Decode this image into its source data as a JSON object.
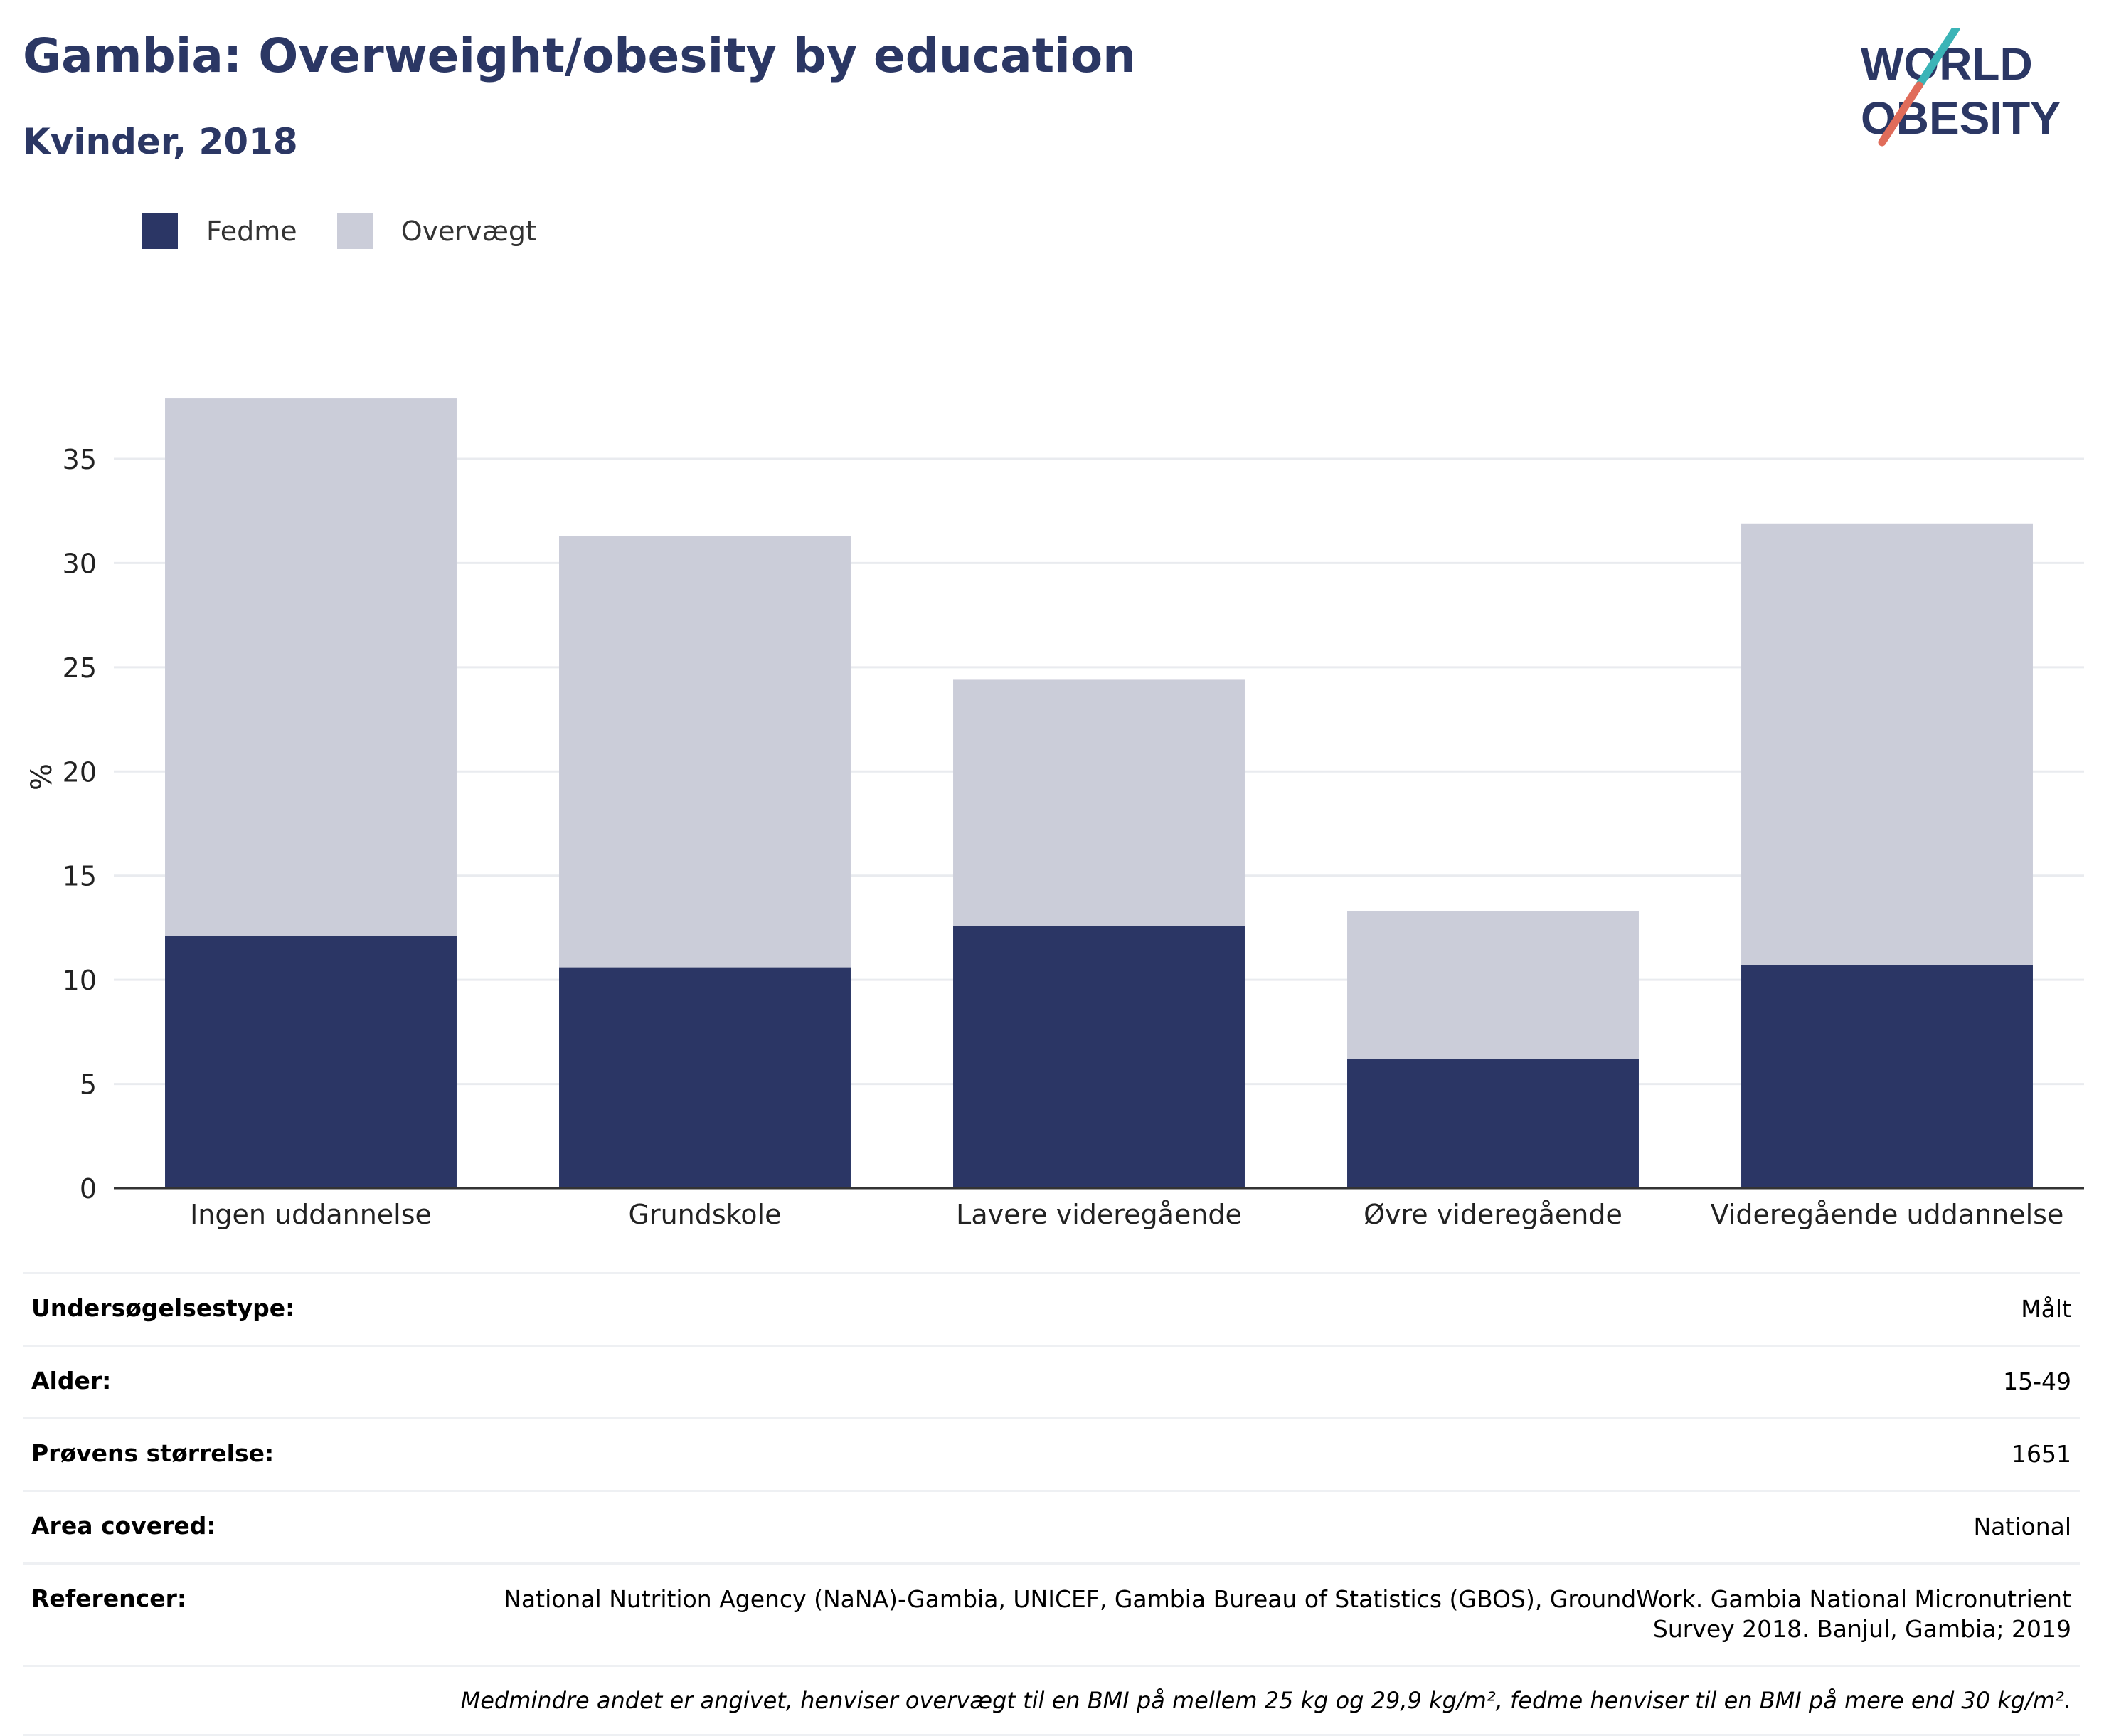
{
  "header": {
    "title": "Gambia: Overweight/obesity by education",
    "subtitle": "Kvinder, 2018"
  },
  "logo": {
    "line1": "WORLD",
    "line2": "OBESITY"
  },
  "colors": {
    "fedme": "#2b3665",
    "overvaegt": "#cbcdd9",
    "title": "#2b3764",
    "logo_teal": "#3bb4b7",
    "logo_coral": "#e06c5a"
  },
  "chart_data": {
    "type": "bar",
    "stacked": true,
    "categories": [
      "Ingen uddannelse",
      "Grundskole",
      "Lavere videregående",
      "Øvre videregående",
      "Videregående uddannelse"
    ],
    "series": [
      {
        "name": "Fedme",
        "values": [
          12.1,
          10.6,
          12.6,
          6.2,
          10.7
        ]
      },
      {
        "name": "Overvægt",
        "values": [
          25.8,
          20.7,
          11.8,
          7.1,
          21.2
        ]
      }
    ],
    "ylabel": "%",
    "ylim": [
      0,
      38
    ],
    "yticks": [
      0,
      5,
      10,
      15,
      20,
      25,
      30,
      35
    ],
    "grid": true,
    "legend": "top-left"
  },
  "info": {
    "rows": [
      {
        "label": "Undersøgelsestype:",
        "value": "Målt"
      },
      {
        "label": "Alder:",
        "value": "15-49"
      },
      {
        "label": "Prøvens størrelse:",
        "value": "1651"
      },
      {
        "label": "Area covered:",
        "value": "National"
      },
      {
        "label": "Referencer:",
        "value": "National Nutrition Agency (NaNA)-Gambia, UNICEF, Gambia Bureau of Statistics (GBOS), GroundWork. Gambia National Micronutrient Survey 2018. Banjul, Gambia; 2019"
      }
    ],
    "footnote": "Medmindre andet er angivet, henviser overvægt til en BMI på mellem 25 kg og 29,9 kg/m², fedme henviser til en BMI på mere end 30 kg/m²."
  }
}
